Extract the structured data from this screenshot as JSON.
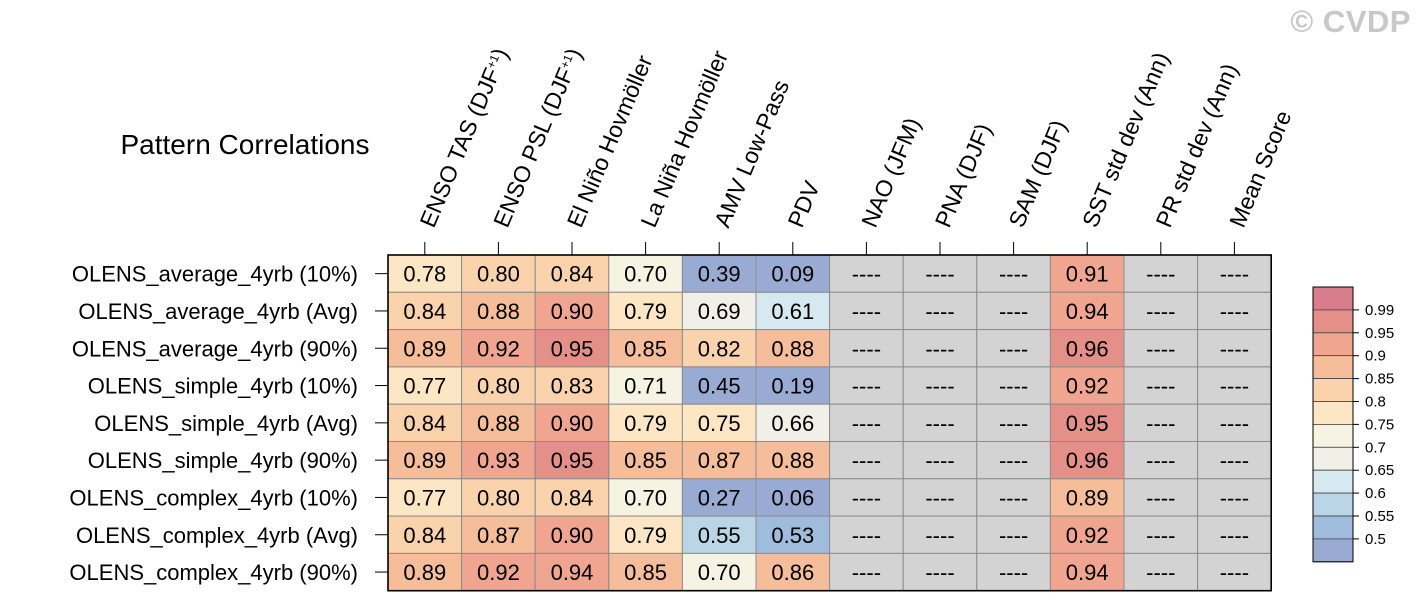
{
  "watermark": "© CVDP",
  "chart_data": {
    "type": "heatmap",
    "title": "Pattern Correlations",
    "columns": [
      "ENSO TAS (DJF+1)",
      "ENSO PSL (DJF+1)",
      "El Niño Hovmöller",
      "La Niña Hovmöller",
      "AMV Low-Pass",
      "PDV",
      "NAO (JFM)",
      "PNA (DJF)",
      "SAM (DJF)",
      "SST std dev (Ann)",
      "PR std dev (Ann)",
      "Mean Score"
    ],
    "rows": [
      "OLENS_average_4yrb (10%)",
      "OLENS_average_4yrb (Avg)",
      "OLENS_average_4yrb (90%)",
      "OLENS_simple_4yrb (10%)",
      "OLENS_simple_4yrb (Avg)",
      "OLENS_simple_4yrb (90%)",
      "OLENS_complex_4yrb (10%)",
      "OLENS_complex_4yrb (Avg)",
      "OLENS_complex_4yrb (90%)"
    ],
    "values": [
      [
        "0.78",
        "0.80",
        "0.84",
        "0.70",
        "0.39",
        "0.09",
        "----",
        "----",
        "----",
        "0.91",
        "----",
        "----"
      ],
      [
        "0.84",
        "0.88",
        "0.90",
        "0.79",
        "0.69",
        "0.61",
        "----",
        "----",
        "----",
        "0.94",
        "----",
        "----"
      ],
      [
        "0.89",
        "0.92",
        "0.95",
        "0.85",
        "0.82",
        "0.88",
        "----",
        "----",
        "----",
        "0.96",
        "----",
        "----"
      ],
      [
        "0.77",
        "0.80",
        "0.83",
        "0.71",
        "0.45",
        "0.19",
        "----",
        "----",
        "----",
        "0.92",
        "----",
        "----"
      ],
      [
        "0.84",
        "0.88",
        "0.90",
        "0.79",
        "0.75",
        "0.66",
        "----",
        "----",
        "----",
        "0.95",
        "----",
        "----"
      ],
      [
        "0.89",
        "0.93",
        "0.95",
        "0.85",
        "0.87",
        "0.88",
        "----",
        "----",
        "----",
        "0.96",
        "----",
        "----"
      ],
      [
        "0.77",
        "0.80",
        "0.84",
        "0.70",
        "0.27",
        "0.06",
        "----",
        "----",
        "----",
        "0.89",
        "----",
        "----"
      ],
      [
        "0.84",
        "0.87",
        "0.90",
        "0.79",
        "0.55",
        "0.53",
        "----",
        "----",
        "----",
        "0.92",
        "----",
        "----"
      ],
      [
        "0.89",
        "0.92",
        "0.94",
        "0.85",
        "0.70",
        "0.86",
        "----",
        "----",
        "----",
        "0.94",
        "----",
        "----"
      ]
    ],
    "missing_label": "----",
    "missing_color": "#d3d3d3",
    "colorbar": {
      "labels": [
        "0.99",
        "0.95",
        "0.9",
        "0.85",
        "0.8",
        "0.75",
        "0.7",
        "0.65",
        "0.6",
        "0.55",
        "0.5"
      ],
      "bins": [
        {
          "min": 0.99,
          "color": "#d87d8c"
        },
        {
          "min": 0.95,
          "color": "#e48f87"
        },
        {
          "min": 0.9,
          "color": "#efa58f"
        },
        {
          "min": 0.85,
          "color": "#f6bd9b"
        },
        {
          "min": 0.8,
          "color": "#fad3ad"
        },
        {
          "min": 0.75,
          "color": "#fce6c4"
        },
        {
          "min": 0.7,
          "color": "#f7f3e2"
        },
        {
          "min": 0.65,
          "color": "#f0f0e8"
        },
        {
          "min": 0.6,
          "color": "#d6e9f1"
        },
        {
          "min": 0.55,
          "color": "#bad5e6"
        },
        {
          "min": 0.5,
          "color": "#a0bcdc"
        },
        {
          "min": -1.0,
          "color": "#9aabd3"
        }
      ]
    }
  }
}
